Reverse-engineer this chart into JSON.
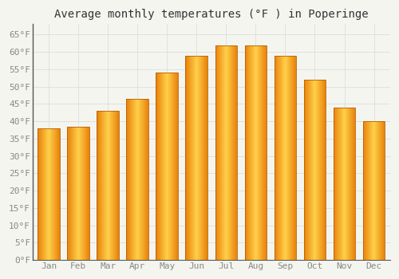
{
  "title": "Average monthly temperatures (°F ) in Poperinge",
  "months": [
    "Jan",
    "Feb",
    "Mar",
    "Apr",
    "May",
    "Jun",
    "Jul",
    "Aug",
    "Sep",
    "Oct",
    "Nov",
    "Dec"
  ],
  "values": [
    38,
    38.5,
    43,
    46.5,
    54,
    59,
    62,
    62,
    59,
    52,
    44,
    40
  ],
  "bar_color_center": "#FFD04A",
  "bar_color_edge": "#E8820A",
  "background_color": "#F5F5F0",
  "plot_bg_color": "#F5F5F0",
  "grid_color": "#DDDDDD",
  "ylim": [
    0,
    68
  ],
  "yticks": [
    0,
    5,
    10,
    15,
    20,
    25,
    30,
    35,
    40,
    45,
    50,
    55,
    60,
    65
  ],
  "ytick_labels": [
    "0°F",
    "5°F",
    "10°F",
    "15°F",
    "20°F",
    "25°F",
    "30°F",
    "35°F",
    "40°F",
    "45°F",
    "50°F",
    "55°F",
    "60°F",
    "65°F"
  ],
  "title_fontsize": 10,
  "tick_fontsize": 8,
  "tick_color": "#888888",
  "spine_color": "#555555",
  "font_family": "monospace"
}
